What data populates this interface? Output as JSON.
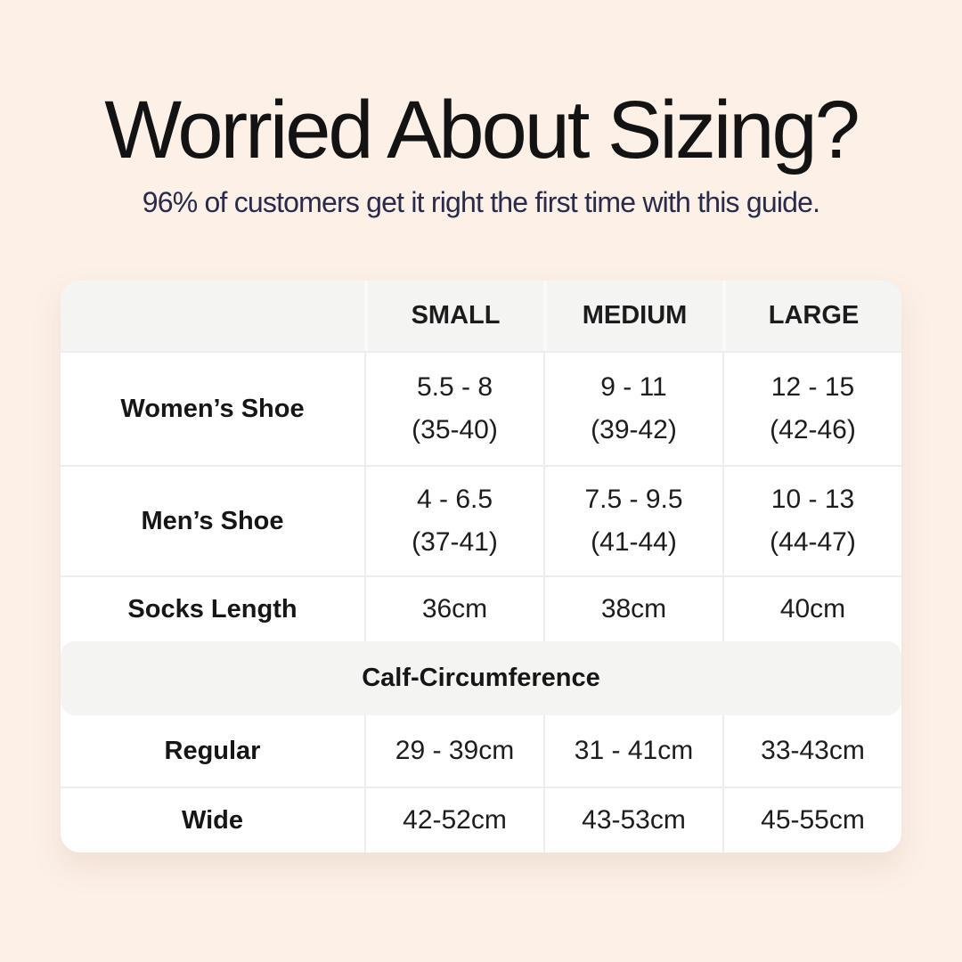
{
  "page": {
    "background_color": "#fcf0e7",
    "title": "Worried About Sizing?",
    "subtitle": "96% of customers get it right the first time with this guide.",
    "title_color": "#131313",
    "subtitle_color": "#2a2a4a"
  },
  "table": {
    "columns": [
      "",
      "SMALL",
      "MEDIUM",
      "LARGE"
    ],
    "shoe_rows": [
      {
        "label": "Women’s Shoe",
        "small": [
          "5.5 - 8",
          "(35-40)"
        ],
        "medium": [
          "9 - 11",
          "(39-42)"
        ],
        "large": [
          "12 - 15",
          "(42-46)"
        ]
      },
      {
        "label": "Men’s Shoe",
        "small": [
          "4 - 6.5",
          "(37-41)"
        ],
        "medium": [
          "7.5 - 9.5",
          "(41-44)"
        ],
        "large": [
          "10 - 13",
          "(44-47)"
        ]
      }
    ],
    "socks_row": {
      "label": "Socks Length",
      "small": "36cm",
      "medium": "38cm",
      "large": "40cm"
    },
    "calf_section": {
      "title": "Calf-Circumference",
      "rows": [
        {
          "label": "Regular",
          "small": "29 - 39cm",
          "medium": "31 - 41cm",
          "large": "33-43cm"
        },
        {
          "label": "Wide",
          "small": "42-52cm",
          "medium": "43-53cm",
          "large": "45-55cm"
        }
      ]
    },
    "style": {
      "header_bg": "#f4f4f3",
      "row_bg": "#ffffff",
      "divider": "#ededed"
    }
  },
  "chart_data": {
    "type": "table",
    "title": "Worried About Sizing?",
    "subtitle": "96% of customers get it right the first time with this guide.",
    "columns": [
      "",
      "SMALL",
      "MEDIUM",
      "LARGE"
    ],
    "rows": [
      [
        "Women’s Shoe",
        "5.5 - 8 (35-40)",
        "9 - 11 (39-42)",
        "12 - 15 (42-46)"
      ],
      [
        "Men’s Shoe",
        "4 - 6.5 (37-41)",
        "7.5 - 9.5 (41-44)",
        "10 - 13 (44-47)"
      ],
      [
        "Socks Length",
        "36cm",
        "38cm",
        "40cm"
      ],
      [
        "Calf-Circumference",
        "",
        "",
        ""
      ],
      [
        "Regular",
        "29 - 39cm",
        "31 - 41cm",
        "33-43cm"
      ],
      [
        "Wide",
        "42-52cm",
        "43-53cm",
        "45-55cm"
      ]
    ]
  }
}
